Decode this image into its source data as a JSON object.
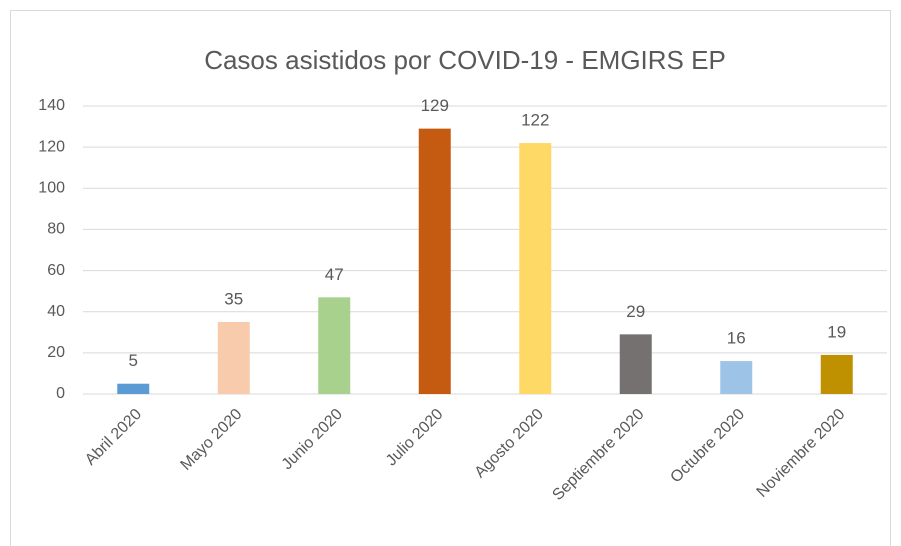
{
  "chart_data": {
    "type": "bar",
    "title": "Casos asistidos por COVID-19 - EMGIRS EP",
    "categories": [
      "Abril 2020",
      "Mayo 2020",
      "Junio 2020",
      "Julio 2020",
      "Agosto 2020",
      "Septiembre 2020",
      "Octubre 2020",
      "Noviembre 2020"
    ],
    "values": [
      5,
      35,
      47,
      129,
      122,
      29,
      16,
      19
    ],
    "colors": [
      "#5b9bd5",
      "#f8cbad",
      "#a9d18e",
      "#c55a11",
      "#ffd966",
      "#767171",
      "#9dc3e6",
      "#bf9000"
    ],
    "ylim": [
      0,
      140
    ],
    "yticks": [
      0,
      20,
      40,
      60,
      80,
      100,
      120,
      140
    ],
    "grid": true
  }
}
